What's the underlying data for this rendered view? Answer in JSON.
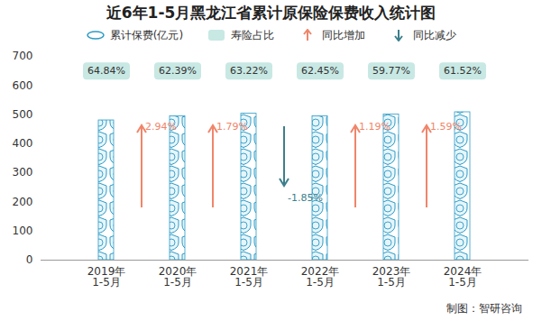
{
  "chart_data": {
    "type": "bar",
    "title": "近6年1-5月黑龙江省累计原保险保费收入统计图",
    "categories": [
      "2019年\n1-5月",
      "2020年\n1-5月",
      "2021年\n1-5月",
      "2022年\n1-5月",
      "2023年\n1-5月",
      "2024年\n1-5月"
    ],
    "series": [
      {
        "name": "累计保费(亿元)",
        "color": "#2b9bc5",
        "values": [
          480,
          494,
          503,
          494,
          500,
          508
        ]
      }
    ],
    "life_share": {
      "name": "寿险占比",
      "color": "#c8e8e3",
      "values": [
        64.84,
        62.39,
        63.22,
        62.45,
        59.77,
        61.52
      ],
      "value_labels": [
        "64.84%",
        "62.39%",
        "63.22%",
        "62.45%",
        "59.77%",
        "61.52%"
      ]
    },
    "yoy_change": {
      "up_name": "同比增加",
      "down_name": "同比减少",
      "up_color": "#f0856a",
      "down_color": "#3c7f8c",
      "values": [
        null,
        2.94,
        1.79,
        -1.85,
        1.19,
        1.59
      ],
      "value_labels": [
        null,
        "2.94%",
        "1.79%",
        "-1.85%",
        "1.19%",
        "1.59%"
      ]
    },
    "ylim": [
      0,
      700
    ],
    "yticks": [
      0,
      100,
      200,
      300,
      400,
      500,
      600,
      700
    ],
    "grid": false,
    "source": "制图：智研咨询"
  }
}
